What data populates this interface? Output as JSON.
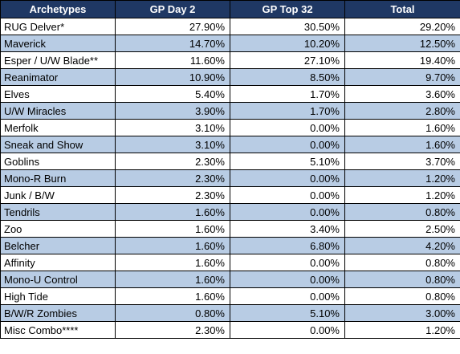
{
  "table": {
    "headers": [
      "Archetypes",
      "GP Day 2",
      "GP Top 32",
      "Total"
    ],
    "rows": [
      [
        "RUG Delver*",
        "27.90%",
        "30.50%",
        "29.20%"
      ],
      [
        "Maverick",
        "14.70%",
        "10.20%",
        "12.50%"
      ],
      [
        "Esper / U/W Blade**",
        "11.60%",
        "27.10%",
        "19.40%"
      ],
      [
        "Reanimator",
        "10.90%",
        "8.50%",
        "9.70%"
      ],
      [
        "Elves",
        "5.40%",
        "1.70%",
        "3.60%"
      ],
      [
        "U/W Miracles",
        "3.90%",
        "1.70%",
        "2.80%"
      ],
      [
        "Merfolk",
        "3.10%",
        "0.00%",
        "1.60%"
      ],
      [
        "Sneak and Show",
        "3.10%",
        "0.00%",
        "1.60%"
      ],
      [
        "Goblins",
        "2.30%",
        "5.10%",
        "3.70%"
      ],
      [
        "Mono-R Burn",
        "2.30%",
        "0.00%",
        "1.20%"
      ],
      [
        "Junk / B/W",
        "2.30%",
        "0.00%",
        "1.20%"
      ],
      [
        "Tendrils",
        "1.60%",
        "0.00%",
        "0.80%"
      ],
      [
        "Zoo",
        "1.60%",
        "3.40%",
        "2.50%"
      ],
      [
        "Belcher",
        "1.60%",
        "6.80%",
        "4.20%"
      ],
      [
        "Affinity",
        "1.60%",
        "0.00%",
        "0.80%"
      ],
      [
        "Mono-U Control",
        "1.60%",
        "0.00%",
        "0.80%"
      ],
      [
        "High Tide",
        "1.60%",
        "0.00%",
        "0.80%"
      ],
      [
        "B/W/R Zombies",
        "0.80%",
        "5.10%",
        "3.00%"
      ],
      [
        "Misc Combo****",
        "2.30%",
        "0.00%",
        "1.20%"
      ]
    ]
  },
  "colors": {
    "header_bg": "#1f3864",
    "header_text": "#ffffff",
    "stripe": "#b8cce4",
    "row": "#ffffff"
  }
}
